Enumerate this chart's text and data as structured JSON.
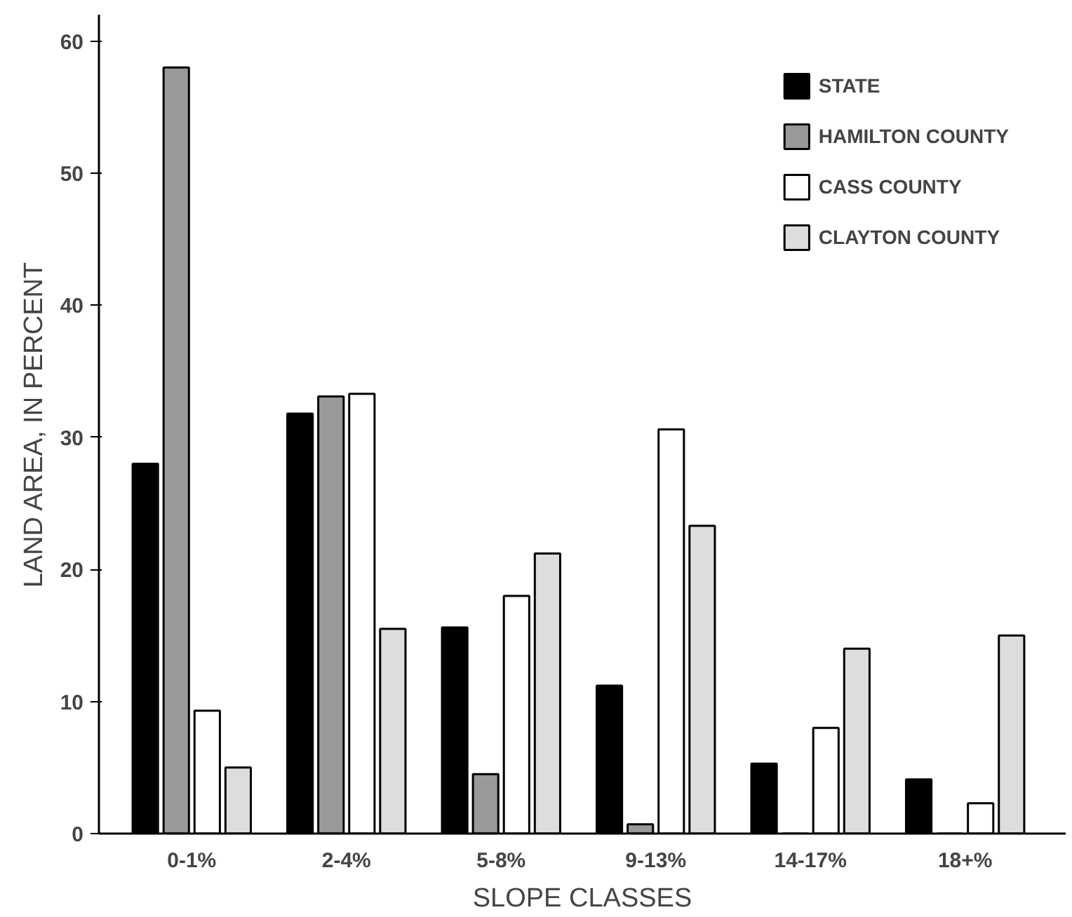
{
  "chart_data": {
    "type": "bar",
    "xlabel": "SLOPE CLASSES",
    "ylabel": "LAND AREA, IN PERCENT",
    "categories": [
      "0-1%",
      "2-4%",
      "5-8%",
      "9-13%",
      "14-17%",
      "18+%"
    ],
    "series": [
      {
        "name": "STATE",
        "color": "#000000",
        "values": [
          28,
          31.8,
          15.6,
          11.2,
          5.3,
          4.1
        ]
      },
      {
        "name": "HAMILTON COUNTY",
        "color": "#999999",
        "values": [
          58,
          33.1,
          4.5,
          0.7,
          0,
          0
        ]
      },
      {
        "name": "CASS COUNTY",
        "color": "#ffffff",
        "values": [
          9.3,
          33.3,
          18,
          30.6,
          8,
          2.3
        ]
      },
      {
        "name": "CLAYTON COUNTY",
        "color": "#dddddd",
        "values": [
          5,
          15.5,
          21.2,
          23.3,
          14,
          15
        ]
      }
    ],
    "ylim": [
      0,
      62
    ],
    "yticks": [
      0,
      10,
      20,
      30,
      40,
      50,
      60
    ],
    "grid": false,
    "legend": "top right"
  }
}
